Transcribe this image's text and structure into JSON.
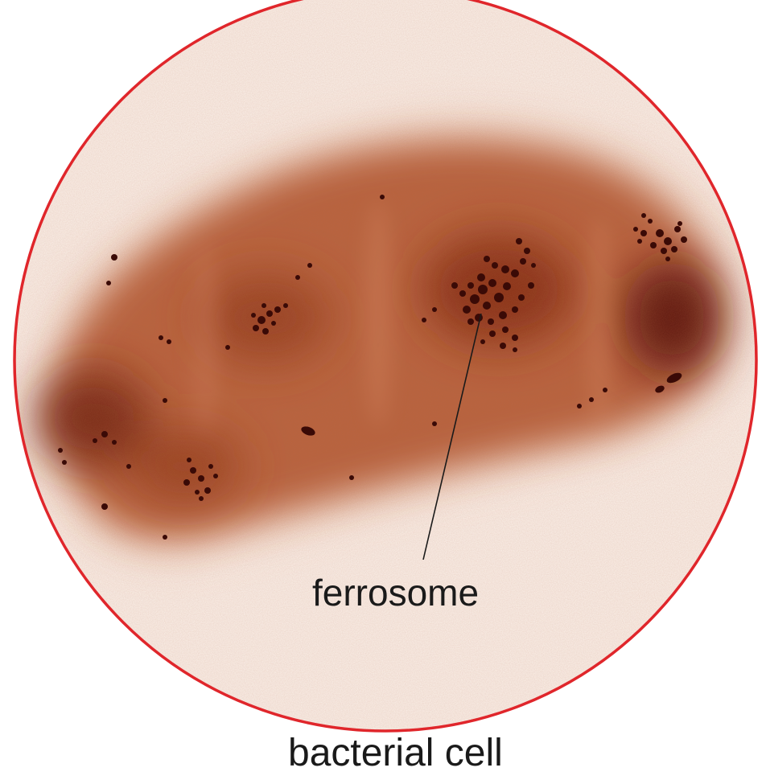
{
  "labels": {
    "organelle": "ferrosome",
    "caption": "bacterial cell"
  },
  "colors": {
    "frame_border": "#e0262b",
    "background": "#fbf1ea",
    "cell_body": "#b7603d",
    "cell_dark": "#5a1408",
    "particle": "#3a0a06",
    "leader_line": "#1a1a1a"
  }
}
